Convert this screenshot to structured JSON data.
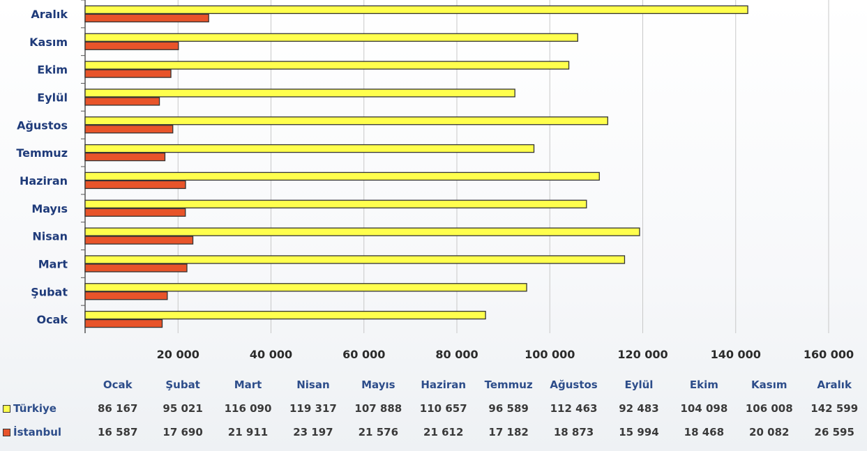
{
  "colors": {
    "turkiye": "#ffff4d",
    "istanbul": "#e8542a",
    "bar_stroke": "#333333",
    "grid": "#c8c8c8",
    "category_text": "#1f3b7a"
  },
  "chart_data": {
    "type": "bar",
    "orientation": "horizontal",
    "categories": [
      "Ocak",
      "Şubat",
      "Mart",
      "Nisan",
      "Mayıs",
      "Haziran",
      "Temmuz",
      "Ağustos",
      "Eylül",
      "Ekim",
      "Kasım",
      "Aralık"
    ],
    "series": [
      {
        "name": "Türkiye",
        "values": [
          86167,
          95021,
          116090,
          119317,
          107888,
          110657,
          96589,
          112463,
          92483,
          104098,
          106008,
          142599
        ]
      },
      {
        "name": "İstanbul",
        "values": [
          16587,
          17690,
          21911,
          23197,
          21576,
          21612,
          17182,
          18873,
          15994,
          18468,
          20082,
          26595
        ]
      }
    ],
    "xlim": [
      0,
      160000
    ],
    "x_ticks": [
      "20 000",
      "40 000",
      "60 000",
      "80 000",
      "100 000",
      "120 000",
      "140 000",
      "160 000"
    ],
    "grid": true,
    "legend": "bottom-left, in data table"
  },
  "table": {
    "headers": [
      "Ocak",
      "Şubat",
      "Mart",
      "Nisan",
      "Mayıs",
      "Haziran",
      "Temmuz",
      "Ağustos",
      "Eylül",
      "Ekim",
      "Kasım",
      "Aralık"
    ],
    "rows": [
      {
        "label": "Türkiye",
        "values": [
          "86 167",
          "95 021",
          "116 090",
          "119 317",
          "107 888",
          "110 657",
          "96 589",
          "112 463",
          "92 483",
          "104 098",
          "106 008",
          "142 599"
        ]
      },
      {
        "label": "İstanbul",
        "values": [
          "16 587",
          "17 690",
          "21 911",
          "23 197",
          "21 576",
          "21 612",
          "17 182",
          "18 873",
          "15 994",
          "18 468",
          "20 082",
          "26 595"
        ]
      }
    ]
  }
}
